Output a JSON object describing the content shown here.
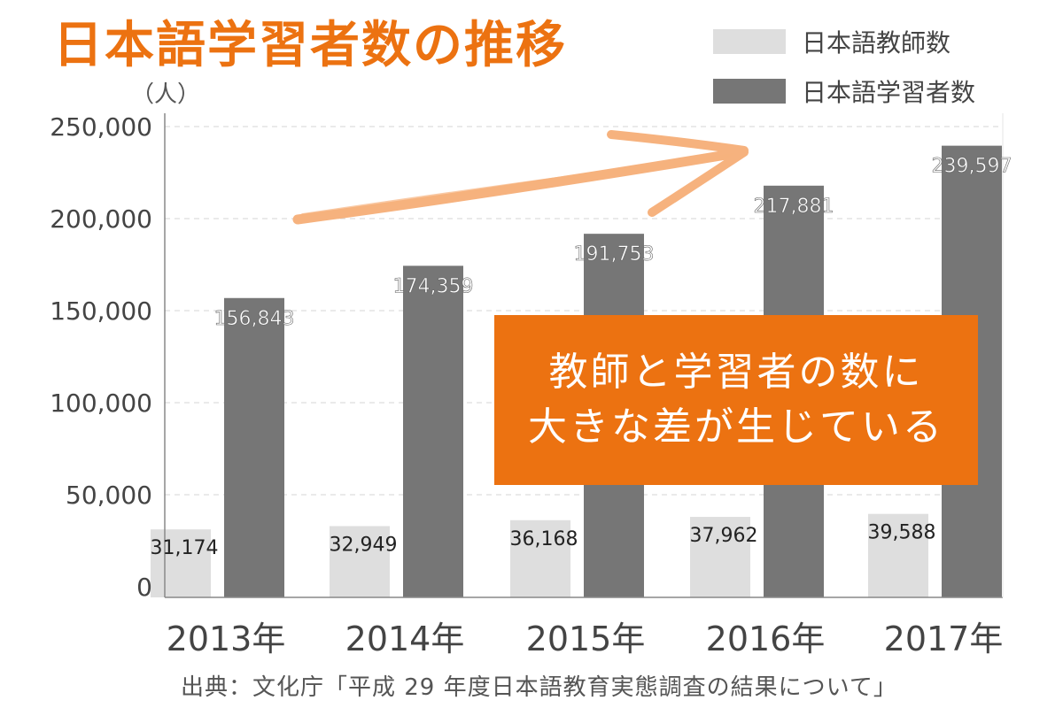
{
  "title": "日本語学習者数の推移",
  "unit_label": "（人）",
  "callout": {
    "line1": "教師と学習者の数に",
    "line2": "大きな差が生じている"
  },
  "source": "出典：文化庁「平成 29 年度日本語教育実態調査の結果について」",
  "colors": {
    "title": "#ec7211",
    "callout_bg": "#ec7211",
    "arrow": "#f6b27e",
    "teachers": "#dedede",
    "learners": "#767676",
    "grid": "#d6d6d6",
    "axis": "#888888",
    "text": "#444444"
  },
  "chart_data": {
    "type": "bar",
    "categories": [
      "2013年",
      "2014年",
      "2015年",
      "2016年",
      "2017年"
    ],
    "series": [
      {
        "name": "日本語教師数",
        "values": [
          31174,
          32949,
          36168,
          37962,
          39588
        ],
        "labels": [
          "31,174",
          "32,949",
          "36,168",
          "37,962",
          "39,588"
        ]
      },
      {
        "name": "日本語学習者数",
        "values": [
          156843,
          174359,
          191753,
          217881,
          239597
        ],
        "labels": [
          "156,843",
          "174,359",
          "191,753",
          "217,881",
          "239,597"
        ]
      }
    ],
    "y_ticks": [
      0,
      50000,
      100000,
      150000,
      200000,
      250000
    ],
    "y_tick_labels": [
      "0",
      "50,000",
      "100,000",
      "150,000",
      "200,000",
      "250,000"
    ],
    "ylim": [
      0,
      250000
    ],
    "ylabel": "（人）",
    "legend_position": "top-right",
    "grid": true
  }
}
